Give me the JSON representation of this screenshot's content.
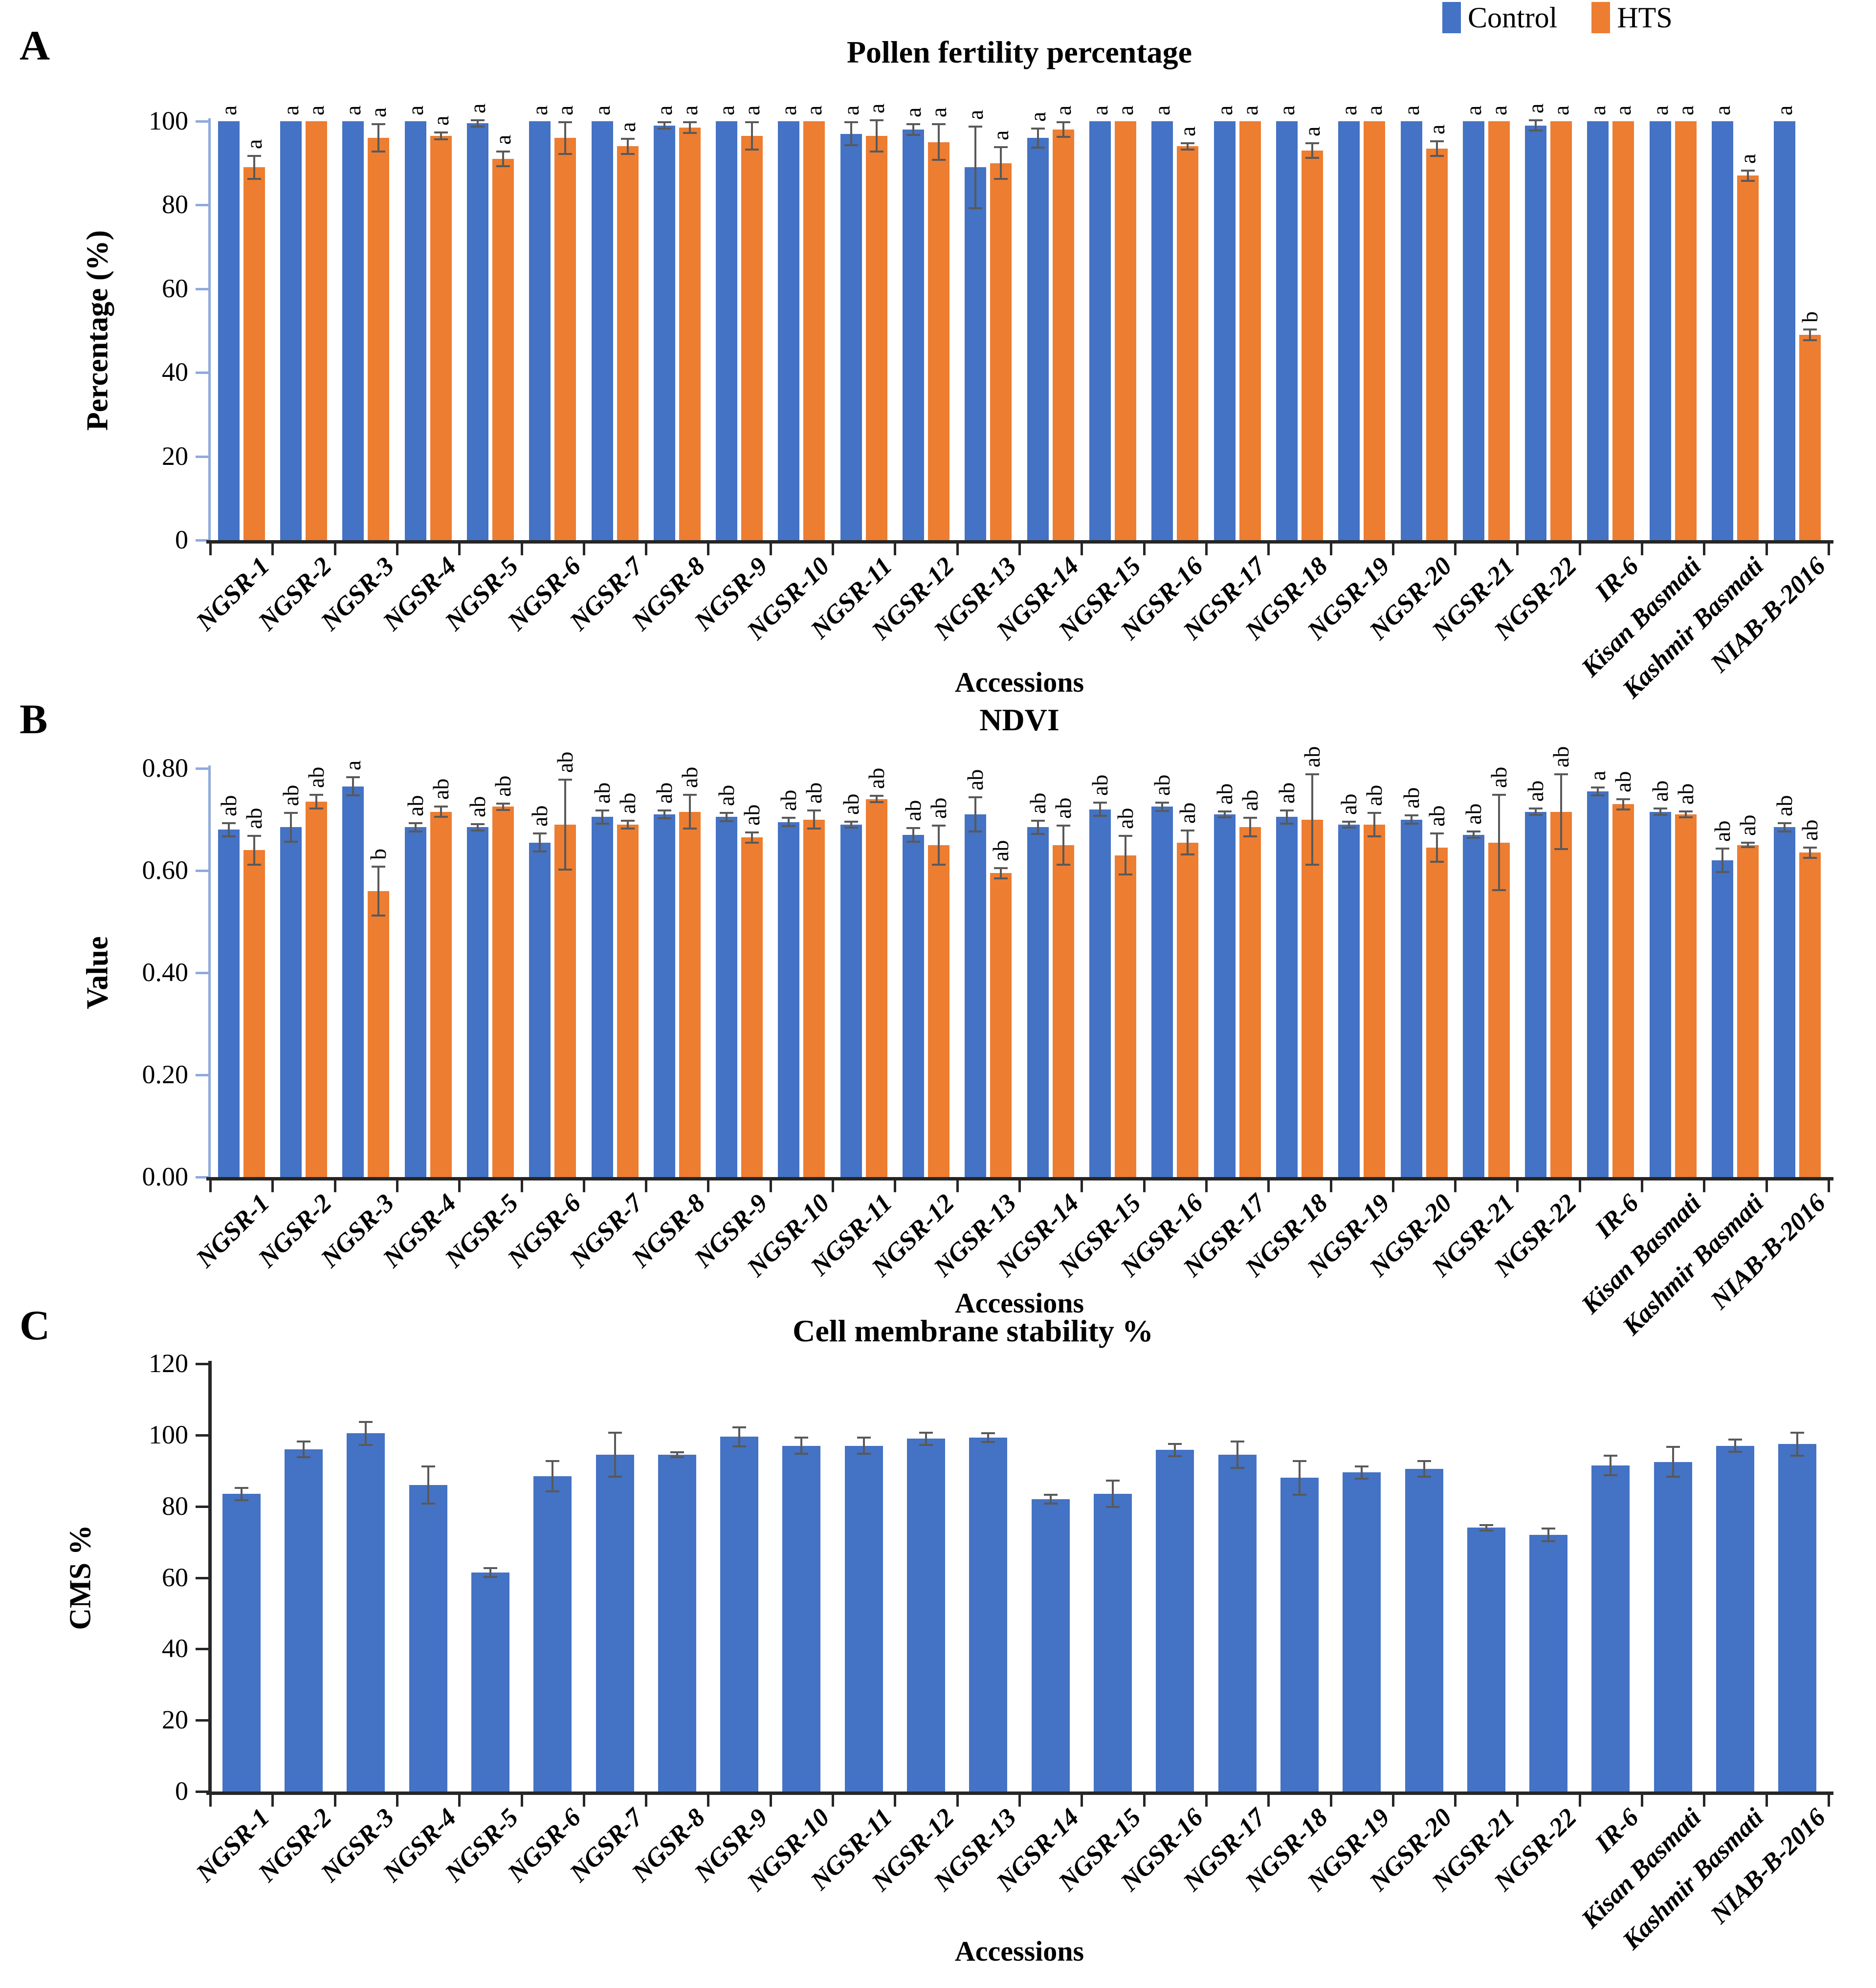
{
  "legend": {
    "control": "Control",
    "hts": "HTS"
  },
  "colors": {
    "control": "#4472C4",
    "hts": "#ED7D31",
    "error_bar": "#595959",
    "axis_blue": "#8FAADC",
    "axis_dark": "#262626",
    "text": "#000000"
  },
  "categories": [
    "NGSR-1",
    "NGSR-2",
    "NGSR-3",
    "NGSR-4",
    "NGSR-5",
    "NGSR-6",
    "NGSR-7",
    "NGSR-8",
    "NGSR-9",
    "NGSR-10",
    "NGSR-11",
    "NGSR-12",
    "NGSR-13",
    "NGSR-14",
    "NGSR-15",
    "NGSR-16",
    "NGSR-17",
    "NGSR-18",
    "NGSR-19",
    "NGSR-20",
    "NGSR-21",
    "NGSR-22",
    "IR-6",
    "Kisan Basmati",
    "Kashmir Basmati",
    "NIAB-B-2016"
  ],
  "chart_data": [
    {
      "panel": "A",
      "type": "bar",
      "title": "Pollen fertility percentage",
      "xlabel": "Accessions",
      "ylabel": "Percentage (%)",
      "ylim": [
        0,
        100
      ],
      "ytick_values": [
        0,
        20,
        40,
        60,
        80,
        100
      ],
      "ytick_labels": [
        "0",
        "20",
        "40",
        "60",
        "80",
        "100"
      ],
      "grid": false,
      "legend_position": "top-right",
      "categories": [
        "NGSR-1",
        "NGSR-2",
        "NGSR-3",
        "NGSR-4",
        "NGSR-5",
        "NGSR-6",
        "NGSR-7",
        "NGSR-8",
        "NGSR-9",
        "NGSR-10",
        "NGSR-11",
        "NGSR-12",
        "NGSR-13",
        "NGSR-14",
        "NGSR-15",
        "NGSR-16",
        "NGSR-17",
        "NGSR-18",
        "NGSR-19",
        "NGSR-20",
        "NGSR-21",
        "NGSR-22",
        "IR-6",
        "Kisan Basmati",
        "Kashmir Basmati",
        "NIAB-B-2016"
      ],
      "series": [
        {
          "name": "Control",
          "values": [
            100,
            100,
            100,
            100,
            99.5,
            100,
            100,
            99,
            100,
            100,
            97,
            98,
            89,
            96,
            100,
            100,
            100,
            100,
            100,
            100,
            100,
            99,
            100,
            100,
            100,
            100
          ],
          "errors": [
            0,
            0,
            0,
            0,
            1,
            0,
            0,
            1,
            0,
            0,
            3,
            1.5,
            10,
            2.5,
            0,
            0,
            0,
            0,
            0,
            0,
            0,
            1.5,
            0,
            0,
            0,
            0
          ],
          "letters": [
            "a",
            "a",
            "a",
            "a",
            "a",
            "a",
            "a",
            "a",
            "a",
            "a",
            "a",
            "a",
            "a",
            "a",
            "a",
            "a",
            "a",
            "a",
            "a",
            "a",
            "a",
            "a",
            "a",
            "a",
            "a",
            "a"
          ]
        },
        {
          "name": "HTS",
          "values": [
            89,
            100,
            96,
            96.5,
            91,
            96,
            94,
            98.5,
            96.5,
            100,
            96.5,
            95,
            90,
            98,
            100,
            94,
            100,
            93,
            100,
            93.5,
            100,
            100,
            100,
            100,
            87,
            49
          ],
          "errors": [
            3,
            0,
            3.5,
            1,
            2,
            4,
            2,
            1.5,
            3.5,
            0,
            4,
            4.5,
            4,
            2,
            0,
            1,
            0,
            2,
            0,
            2,
            0,
            0,
            0,
            0,
            1.5,
            1.5
          ],
          "letters": [
            "a",
            "a",
            "a",
            "a",
            "a",
            "a",
            "a",
            "a",
            "a",
            "a",
            "a",
            "a",
            "a",
            "a",
            "a",
            "a",
            "a",
            "a",
            "a",
            "a",
            "a",
            "a",
            "a",
            "a",
            "a",
            "b"
          ]
        }
      ]
    },
    {
      "panel": "B",
      "type": "bar",
      "title": "NDVI",
      "xlabel": "Accessions",
      "ylabel": "Value",
      "ylim": [
        0,
        0.8
      ],
      "ytick_values": [
        0,
        0.2,
        0.4,
        0.6,
        0.8
      ],
      "ytick_labels": [
        "0.00",
        "0.20",
        "0.40",
        "0.60",
        "0.80"
      ],
      "grid": false,
      "legend_position": "shared-top-right",
      "categories": [
        "NGSR-1",
        "NGSR-2",
        "NGSR-3",
        "NGSR-4",
        "NGSR-5",
        "NGSR-6",
        "NGSR-7",
        "NGSR-8",
        "NGSR-9",
        "NGSR-10",
        "NGSR-11",
        "NGSR-12",
        "NGSR-13",
        "NGSR-14",
        "NGSR-15",
        "NGSR-16",
        "NGSR-17",
        "NGSR-18",
        "NGSR-19",
        "NGSR-20",
        "NGSR-21",
        "NGSR-22",
        "IR-6",
        "Kisan Basmati",
        "Kashmir Basmati",
        "NIAB-B-2016"
      ],
      "series": [
        {
          "name": "Control",
          "values": [
            0.68,
            0.685,
            0.765,
            0.685,
            0.685,
            0.655,
            0.705,
            0.71,
            0.705,
            0.695,
            0.69,
            0.67,
            0.71,
            0.685,
            0.72,
            0.725,
            0.71,
            0.705,
            0.69,
            0.7,
            0.67,
            0.715,
            0.755,
            0.715,
            0.62,
            0.685
          ],
          "errors": [
            0.015,
            0.03,
            0.02,
            0.01,
            0.008,
            0.02,
            0.015,
            0.01,
            0.01,
            0.01,
            0.008,
            0.015,
            0.035,
            0.015,
            0.015,
            0.01,
            0.008,
            0.015,
            0.008,
            0.01,
            0.008,
            0.008,
            0.01,
            0.008,
            0.025,
            0.01
          ],
          "letters": [
            "ab",
            "ab",
            "a",
            "ab",
            "ab",
            "ab",
            "ab",
            "ab",
            "ab",
            "ab",
            "ab",
            "ab",
            "ab",
            "ab",
            "ab",
            "ab",
            "ab",
            "ab",
            "ab",
            "ab",
            "ab",
            "ab",
            "a",
            "ab",
            "ab",
            "ab"
          ]
        },
        {
          "name": "HTS",
          "values": [
            0.64,
            0.735,
            0.56,
            0.715,
            0.725,
            0.69,
            0.69,
            0.715,
            0.665,
            0.7,
            0.74,
            0.65,
            0.595,
            0.65,
            0.63,
            0.655,
            0.685,
            0.7,
            0.69,
            0.645,
            0.655,
            0.715,
            0.73,
            0.71,
            0.65,
            0.635
          ],
          "errors": [
            0.03,
            0.015,
            0.05,
            0.012,
            0.008,
            0.09,
            0.01,
            0.035,
            0.012,
            0.02,
            0.008,
            0.04,
            0.012,
            0.04,
            0.04,
            0.025,
            0.02,
            0.09,
            0.025,
            0.03,
            0.095,
            0.075,
            0.012,
            0.008,
            0.006,
            0.012
          ],
          "letters": [
            "ab",
            "ab",
            "b",
            "ab",
            "ab",
            "ab",
            "ab",
            "ab",
            "ab",
            "ab",
            "ab",
            "ab",
            "ab",
            "ab",
            "ab",
            "ab",
            "ab",
            "ab",
            "ab",
            "ab",
            "ab",
            "ab",
            "ab",
            "ab",
            "ab",
            "ab"
          ]
        }
      ]
    },
    {
      "panel": "C",
      "type": "bar",
      "title": "Cell membrane stability %",
      "xlabel": "Accessions",
      "ylabel": "CMS %",
      "ylim": [
        0,
        120
      ],
      "ytick_values": [
        0,
        20,
        40,
        60,
        80,
        100,
        120
      ],
      "ytick_labels": [
        "0",
        "20",
        "40",
        "60",
        "80",
        "100",
        "120"
      ],
      "grid": false,
      "legend_position": "none",
      "categories": [
        "NGSR-1",
        "NGSR-2",
        "NGSR-3",
        "NGSR-4",
        "NGSR-5",
        "NGSR-6",
        "NGSR-7",
        "NGSR-8",
        "NGSR-9",
        "NGSR-10",
        "NGSR-11",
        "NGSR-12",
        "NGSR-13",
        "NGSR-14",
        "NGSR-15",
        "NGSR-16",
        "NGSR-17",
        "NGSR-18",
        "NGSR-19",
        "NGSR-20",
        "NGSR-21",
        "NGSR-22",
        "IR-6",
        "Kisan Basmati",
        "Kashmir Basmati",
        "NIAB-B-2016"
      ],
      "series": [
        {
          "name": "Control",
          "values": [
            83.5,
            96,
            100.5,
            86,
            61.5,
            88.5,
            94.5,
            94.5,
            99.5,
            97,
            97,
            99,
            99.3,
            82,
            83.5,
            95.8,
            94.5,
            88,
            89.5,
            90.5,
            74,
            72,
            91.5,
            92.5,
            97,
            97.5
          ],
          "errors": [
            2,
            2.5,
            3.5,
            5.5,
            1.5,
            4.5,
            6.5,
            1,
            3,
            2.5,
            2.5,
            2,
            1.5,
            1.5,
            4,
            2,
            4,
            5,
            2,
            2.5,
            1,
            2,
            3,
            4.5,
            2,
            3.5
          ],
          "letters": []
        }
      ]
    }
  ]
}
